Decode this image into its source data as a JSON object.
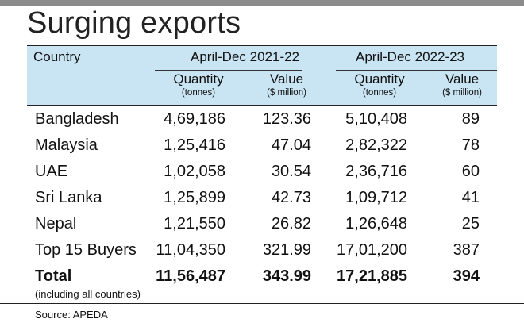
{
  "title": "Surging exports",
  "header": {
    "country": "Country",
    "period1": "April-Dec 2021-22",
    "period2": "April-Dec 2022-23",
    "quantity": "Quantity",
    "quantity_unit": "(tonnes)",
    "value": "Value",
    "value_unit": "($ million)"
  },
  "rows": [
    {
      "country": "Bangladesh",
      "q1": "4,69,186",
      "v1": "123.36",
      "q2": "5,10,408",
      "v2": "89"
    },
    {
      "country": "Malaysia",
      "q1": "1,25,416",
      "v1": "47.04",
      "q2": "2,82,322",
      "v2": "78"
    },
    {
      "country": "UAE",
      "q1": "1,02,058",
      "v1": "30.54",
      "q2": "2,36,716",
      "v2": "60"
    },
    {
      "country": "Sri Lanka",
      "q1": "1,25,899",
      "v1": "42.73",
      "q2": "1,09,712",
      "v2": "41"
    },
    {
      "country": "Nepal",
      "q1": "1,21,550",
      "v1": "26.82",
      "q2": "1,26,648",
      "v2": "25"
    },
    {
      "country": "Top 15 Buyers",
      "q1": "11,04,350",
      "v1": "321.99",
      "q2": "17,01,200",
      "v2": "387"
    }
  ],
  "total": {
    "country": "Total",
    "q1": "11,56,487",
    "v1": "343.99",
    "q2": "17,21,885",
    "v2": "394"
  },
  "total_note": "(including all countries)",
  "source": "Source: APEDA"
}
